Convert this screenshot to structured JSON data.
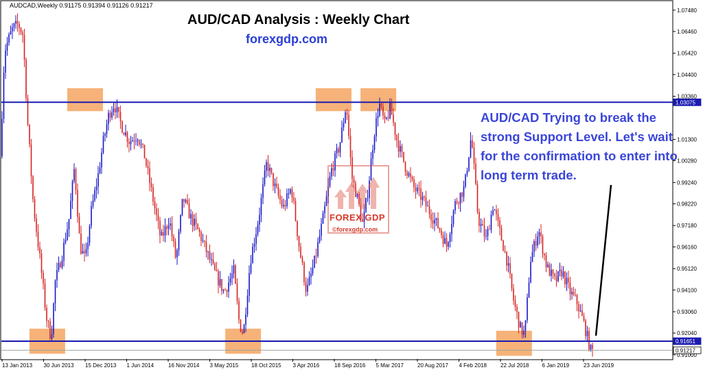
{
  "header": {
    "symbol_ohlc": "AUDCAD,Weekly  0.91175 0.91394 0.91126 0.91217",
    "title": "AUD/CAD Analysis : Weekly Chart",
    "site": "forexgdp.com"
  },
  "annotation": "AUD/CAD Trying to break the strong Support Level. Let's wait for the confirmation to enter into long term trade.",
  "watermark": {
    "logo_text": "FOREX GDP",
    "sub_text": "©forexgdp.com"
  },
  "colors": {
    "bull": "#1515c8",
    "bear": "#d42020",
    "level_line": "#1a1ab0",
    "highlight_box": "#f4a460",
    "annotation": "#3b46d8",
    "price_label_bg": "#1a1ab0"
  },
  "chart_data": {
    "type": "candlestick",
    "title": "AUD/CAD Analysis : Weekly Chart",
    "symbol": "AUDCAD",
    "timeframe": "Weekly",
    "ylim": [
      0.908,
      1.079
    ],
    "y_ticks": [
      "1.07480",
      "1.06460",
      "1.05420",
      "1.04400",
      "1.03360",
      "1.01300",
      "1.00280",
      "0.99240",
      "0.98220",
      "0.97180",
      "0.96160",
      "0.95120",
      "0.94100",
      "0.93060",
      "0.92040",
      "0.91000"
    ],
    "x_ticks": [
      "13 Jan 2013",
      "30 Jun 2013",
      "15 Dec 2013",
      "1 Jun 2014",
      "16 Nov 2014",
      "3 May 2015",
      "18 Oct 2015",
      "3 Apr 2016",
      "18 Sep 2016",
      "5 Mar 2017",
      "20 Aug 2017",
      "4 Feb 2018",
      "22 Jul 2018",
      "6 Jan 2019",
      "23 Jun 2019"
    ],
    "price_labels": [
      "1.03075",
      "0.91651",
      "0.91217"
    ],
    "levels": [
      {
        "name": "resistance",
        "value": 1.03075
      },
      {
        "name": "support",
        "value": 0.91651
      }
    ],
    "current_price": 0.91217,
    "grid": false,
    "anchors": [
      {
        "x": 0,
        "v": 1.005
      },
      {
        "x": 6,
        "v": 1.055
      },
      {
        "x": 11,
        "v": 1.06
      },
      {
        "x": 18,
        "v": 1.066
      },
      {
        "x": 26,
        "v": 1.068
      },
      {
        "x": 33,
        "v": 1.063
      },
      {
        "x": 40,
        "v": 1.02
      },
      {
        "x": 48,
        "v": 0.982
      },
      {
        "x": 58,
        "v": 0.955
      },
      {
        "x": 67,
        "v": 0.928
      },
      {
        "x": 74,
        "v": 0.918
      },
      {
        "x": 80,
        "v": 0.945
      },
      {
        "x": 90,
        "v": 0.958
      },
      {
        "x": 100,
        "v": 0.975
      },
      {
        "x": 108,
        "v": 1.0
      },
      {
        "x": 116,
        "v": 0.962
      },
      {
        "x": 124,
        "v": 0.955
      },
      {
        "x": 132,
        "v": 0.978
      },
      {
        "x": 142,
        "v": 0.995
      },
      {
        "x": 150,
        "v": 1.012
      },
      {
        "x": 158,
        "v": 1.025
      },
      {
        "x": 166,
        "v": 1.03
      },
      {
        "x": 176,
        "v": 1.02
      },
      {
        "x": 188,
        "v": 1.012
      },
      {
        "x": 200,
        "v": 1.015
      },
      {
        "x": 210,
        "v": 1.005
      },
      {
        "x": 222,
        "v": 0.985
      },
      {
        "x": 234,
        "v": 0.965
      },
      {
        "x": 246,
        "v": 0.975
      },
      {
        "x": 256,
        "v": 0.955
      },
      {
        "x": 266,
        "v": 0.985
      },
      {
        "x": 278,
        "v": 0.975
      },
      {
        "x": 290,
        "v": 0.968
      },
      {
        "x": 302,
        "v": 0.958
      },
      {
        "x": 314,
        "v": 0.948
      },
      {
        "x": 326,
        "v": 0.94
      },
      {
        "x": 340,
        "v": 0.95
      },
      {
        "x": 348,
        "v": 0.925
      },
      {
        "x": 354,
        "v": 0.92
      },
      {
        "x": 364,
        "v": 0.955
      },
      {
        "x": 376,
        "v": 0.975
      },
      {
        "x": 388,
        "v": 1.002
      },
      {
        "x": 400,
        "v": 0.99
      },
      {
        "x": 412,
        "v": 0.98
      },
      {
        "x": 424,
        "v": 0.99
      },
      {
        "x": 436,
        "v": 0.96
      },
      {
        "x": 446,
        "v": 0.94
      },
      {
        "x": 458,
        "v": 0.955
      },
      {
        "x": 470,
        "v": 0.975
      },
      {
        "x": 482,
        "v": 0.998
      },
      {
        "x": 494,
        "v": 1.01
      },
      {
        "x": 504,
        "v": 1.03
      },
      {
        "x": 512,
        "v": 0.995
      },
      {
        "x": 520,
        "v": 0.985
      },
      {
        "x": 528,
        "v": 0.972
      },
      {
        "x": 536,
        "v": 0.99
      },
      {
        "x": 544,
        "v": 1.015
      },
      {
        "x": 552,
        "v": 1.03
      },
      {
        "x": 560,
        "v": 1.02
      },
      {
        "x": 568,
        "v": 1.028
      },
      {
        "x": 578,
        "v": 1.012
      },
      {
        "x": 590,
        "v": 1.0
      },
      {
        "x": 602,
        "v": 0.99
      },
      {
        "x": 614,
        "v": 0.985
      },
      {
        "x": 626,
        "v": 0.978
      },
      {
        "x": 640,
        "v": 0.97
      },
      {
        "x": 650,
        "v": 0.962
      },
      {
        "x": 662,
        "v": 0.982
      },
      {
        "x": 676,
        "v": 0.99
      },
      {
        "x": 686,
        "v": 1.015
      },
      {
        "x": 696,
        "v": 0.975
      },
      {
        "x": 708,
        "v": 0.965
      },
      {
        "x": 718,
        "v": 0.982
      },
      {
        "x": 728,
        "v": 0.968
      },
      {
        "x": 738,
        "v": 0.955
      },
      {
        "x": 748,
        "v": 0.935
      },
      {
        "x": 758,
        "v": 0.922
      },
      {
        "x": 764,
        "v": 0.92
      },
      {
        "x": 772,
        "v": 0.955
      },
      {
        "x": 784,
        "v": 0.97
      },
      {
        "x": 796,
        "v": 0.952
      },
      {
        "x": 808,
        "v": 0.945
      },
      {
        "x": 818,
        "v": 0.95
      },
      {
        "x": 830,
        "v": 0.94
      },
      {
        "x": 840,
        "v": 0.935
      },
      {
        "x": 850,
        "v": 0.925
      },
      {
        "x": 860,
        "v": 0.912
      }
    ],
    "highlight_boxes": [
      {
        "label": "top-2013-2014",
        "date": "Dec 2013",
        "y_range": [
          1.0265,
          1.0375
        ]
      },
      {
        "label": "top-2016",
        "date": "Sep 2016",
        "y_range": [
          1.0265,
          1.0375
        ]
      },
      {
        "label": "top-2017",
        "date": "Mar 2017",
        "y_range": [
          1.0265,
          1.0375
        ]
      },
      {
        "label": "bottom-2013",
        "date": "Jul 2013",
        "y_range": [
          0.9105,
          0.9225
        ]
      },
      {
        "label": "bottom-2015",
        "date": "Sep 2015",
        "y_range": [
          0.9105,
          0.9225
        ]
      },
      {
        "label": "bottom-2018",
        "date": "Sep 2018",
        "y_range": [
          0.9095,
          0.9215
        ]
      }
    ]
  }
}
